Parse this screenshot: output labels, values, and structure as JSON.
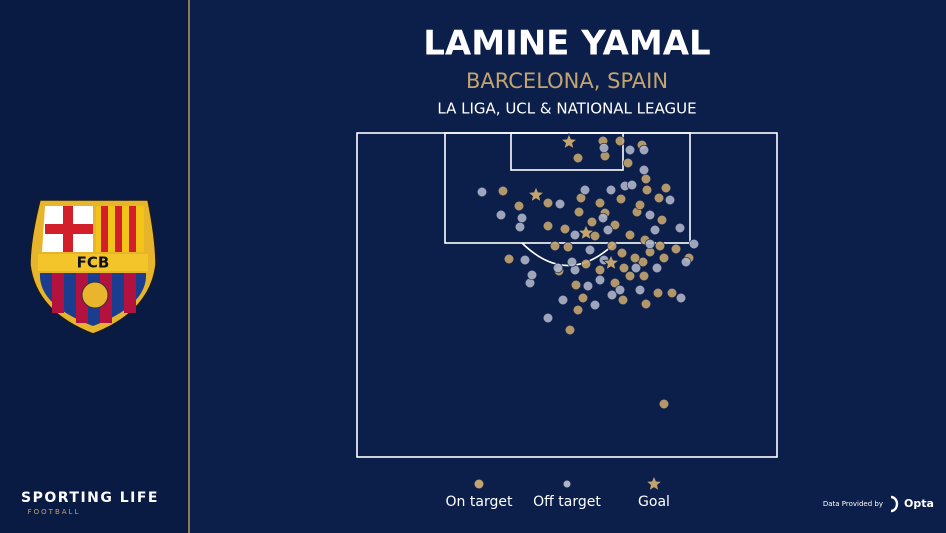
{
  "chart_data": {
    "type": "scatter",
    "title": "LAMINE YAMAL",
    "subtitle": "BARCELONA, SPAIN",
    "competition": "LA LIGA, UCL & NATIONAL LEAGUE",
    "xlim": [
      0,
      420
    ],
    "ylim": [
      0,
      324
    ],
    "series": [
      {
        "name": "On target",
        "color": "#c3a46e",
        "marker": "circle",
        "x": [
          246,
          263,
          285,
          221,
          248,
          271,
          289,
          309,
          302,
          290,
          146,
          162,
          191,
          224,
          243,
          264,
          280,
          305,
          258,
          222,
          208,
          191,
          238,
          255,
          273,
          288,
          303,
          319,
          332,
          307,
          286,
          267,
          243,
          229,
          219,
          226,
          221,
          213,
          258,
          273,
          287,
          301,
          315,
          266,
          289,
          152,
          202,
          307,
          283,
          248,
          235,
          211,
          198,
          265,
          293,
          278
        ],
        "y": [
          8,
          8,
          12,
          25,
          23,
          30,
          46,
          55,
          65,
          57,
          58,
          73,
          70,
          65,
          70,
          66,
          79,
          87,
          92,
          79,
          96,
          93,
          103,
          113,
          102,
          107,
          113,
          116,
          125,
          125,
          129,
          135,
          137,
          131,
          152,
          165,
          177,
          197,
          150,
          143,
          143,
          160,
          160,
          167,
          171,
          126,
          138,
          271,
          72,
          80,
          89,
          114,
          113,
          120,
          119,
          125
        ]
      },
      {
        "name": "Off target",
        "color": "#aeb4c8",
        "marker": "circle",
        "x": [
          247,
          273,
          287,
          287,
          268,
          254,
          125,
          144,
          165,
          203,
          228,
          275,
          313,
          323,
          298,
          337,
          218,
          163,
          233,
          247,
          279,
          300,
          329,
          168,
          173,
          175,
          201,
          243,
          255,
          238,
          283,
          324,
          218,
          206,
          263,
          191,
          246,
          293,
          251,
          215,
          231,
          293
        ],
        "y": [
          15,
          17,
          17,
          37,
          53,
          57,
          59,
          82,
          85,
          71,
          57,
          52,
          67,
          95,
          97,
          111,
          102,
          94,
          117,
          127,
          135,
          135,
          129,
          127,
          150,
          142,
          135,
          147,
          162,
          172,
          157,
          165,
          137,
          167,
          157,
          185,
          85,
          82,
          97,
          129,
          153,
          111
        ]
      },
      {
        "name": "Goal",
        "color": "#c3a46e",
        "marker": "star",
        "x": [
          212,
          179,
          229,
          254
        ],
        "y": [
          9,
          62,
          100,
          130
        ]
      }
    ]
  },
  "crest": {
    "label": "FCB"
  },
  "branding": {
    "name": "SPORTING LIFE",
    "section": "FOOTBALL",
    "credit": "Data Provided by",
    "provider": "Opta"
  }
}
